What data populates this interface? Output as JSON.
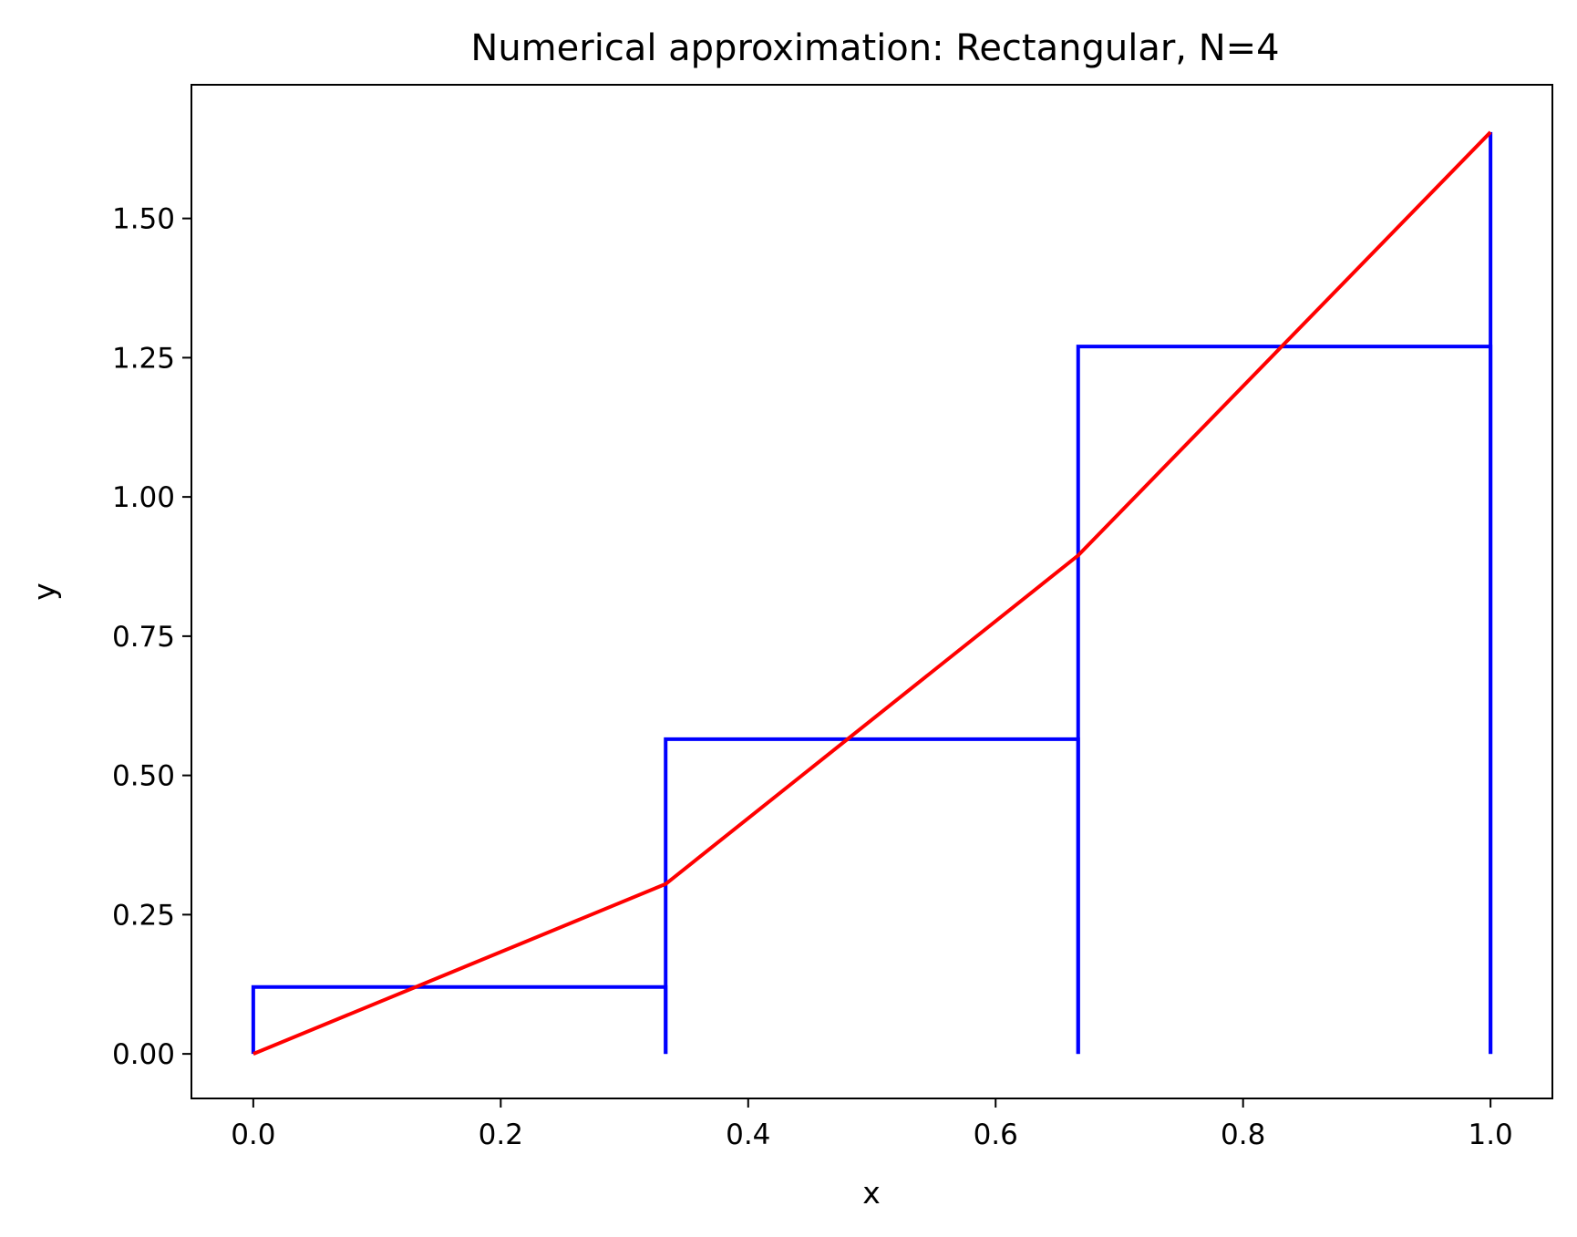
{
  "chart_data": {
    "type": "line",
    "title": "Numerical approximation: Rectangular, N=4",
    "xlabel": "x",
    "ylabel": "y",
    "xlim": [
      -0.05,
      1.05
    ],
    "ylim": [
      -0.08,
      1.74
    ],
    "xticks": [
      0.0,
      0.2,
      0.4,
      0.6,
      0.8,
      1.0
    ],
    "xtick_labels": [
      "0.0",
      "0.2",
      "0.4",
      "0.6",
      "0.8",
      "1.0"
    ],
    "yticks": [
      0.0,
      0.25,
      0.5,
      0.75,
      1.0,
      1.25,
      1.5
    ],
    "ytick_labels": [
      "0.00",
      "0.25",
      "0.50",
      "0.75",
      "1.00",
      "1.25",
      "1.50"
    ],
    "grid": false,
    "series": [
      {
        "kind": "function",
        "color": "#ff0000",
        "x": [
          0.0,
          0.3333,
          0.6667,
          1.0
        ],
        "y": [
          0.0,
          0.305,
          0.895,
          1.655
        ]
      },
      {
        "kind": "rectangles",
        "color": "#0000ff",
        "x_left": [
          0.0,
          0.3333,
          0.6667
        ],
        "x_right": [
          0.3333,
          0.6667,
          1.0
        ],
        "heights": [
          0.12,
          0.565,
          1.27
        ],
        "end_line_x": 1.0,
        "end_line_top": 1.655
      }
    ]
  }
}
